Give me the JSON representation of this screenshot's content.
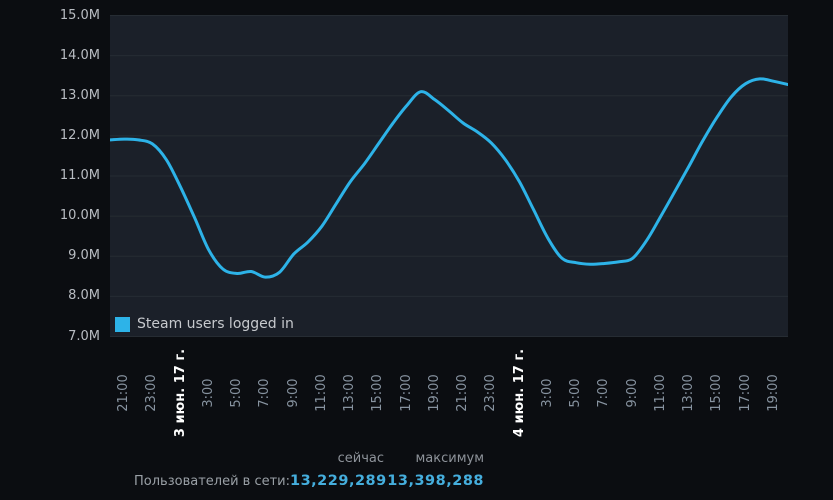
{
  "page": {
    "background": "#0b0d11"
  },
  "chart_data": {
    "type": "line",
    "title": "",
    "plot_bg": "#1b2029",
    "grid_color": "#262c33",
    "grid": "horizontal",
    "legend": {
      "label": "Steam users logged in",
      "swatch_color": "#2db3e8",
      "position": "bottom-left-inside"
    },
    "y_axis": {
      "min": 7,
      "max": 15,
      "tick_step": 1,
      "unit": "M",
      "labels": [
        "15.0M",
        "14.0M",
        "13.0M",
        "12.0M",
        "11.0M",
        "10.0M",
        "9.0M",
        "8.0M",
        "7.0M"
      ]
    },
    "x_axis": {
      "label_rotation": -90,
      "hours_per_point": 1,
      "labels_every_points": 2,
      "tick_labels": [
        {
          "text": "21:00",
          "bold": false
        },
        {
          "text": "23:00",
          "bold": false
        },
        {
          "text": "3 июн. 17 г.",
          "bold": true
        },
        {
          "text": "3:00",
          "bold": false
        },
        {
          "text": "5:00",
          "bold": false
        },
        {
          "text": "7:00",
          "bold": false
        },
        {
          "text": "9:00",
          "bold": false
        },
        {
          "text": "11:00",
          "bold": false
        },
        {
          "text": "13:00",
          "bold": false
        },
        {
          "text": "15:00",
          "bold": false
        },
        {
          "text": "17:00",
          "bold": false
        },
        {
          "text": "19:00",
          "bold": false
        },
        {
          "text": "21:00",
          "bold": false
        },
        {
          "text": "23:00",
          "bold": false
        },
        {
          "text": "4 июн. 17 г.",
          "bold": true
        },
        {
          "text": "3:00",
          "bold": false
        },
        {
          "text": "5:00",
          "bold": false
        },
        {
          "text": "7:00",
          "bold": false
        },
        {
          "text": "9:00",
          "bold": false
        },
        {
          "text": "11:00",
          "bold": false
        },
        {
          "text": "13:00",
          "bold": false
        },
        {
          "text": "15:00",
          "bold": false
        },
        {
          "text": "17:00",
          "bold": false
        },
        {
          "text": "19:00",
          "bold": false
        }
      ]
    },
    "series": [
      {
        "name": "Steam users logged in",
        "color": "#2db3e8",
        "unit": "millions of users",
        "values": [
          11.9,
          11.92,
          11.9,
          11.8,
          11.4,
          10.72,
          9.95,
          9.15,
          8.68,
          8.57,
          8.62,
          8.48,
          8.6,
          9.05,
          9.35,
          9.75,
          10.3,
          10.85,
          11.3,
          11.8,
          12.3,
          12.75,
          13.1,
          12.9,
          12.62,
          12.32,
          12.1,
          11.82,
          11.4,
          10.85,
          10.15,
          9.45,
          8.95,
          8.84,
          8.8,
          8.82,
          8.86,
          8.95,
          9.4,
          10.0,
          10.62,
          11.25,
          11.9,
          12.48,
          12.98,
          13.3,
          13.42,
          13.36,
          13.28
        ]
      }
    ]
  },
  "stats": {
    "col_now": "сейчас",
    "col_max": "максимум",
    "row_label": "Пользователей в сети:",
    "now_value": "13,229,289",
    "max_value": "13,398,288",
    "value_color": "#45aedd"
  }
}
